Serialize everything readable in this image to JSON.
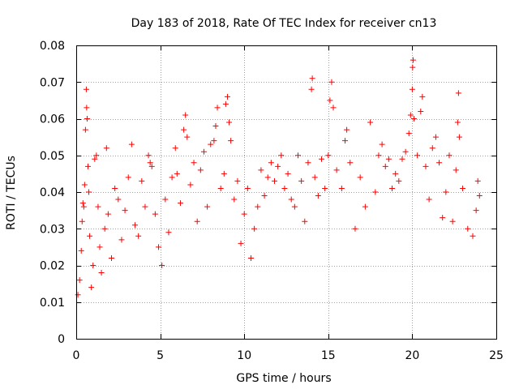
{
  "chart_data": {
    "type": "scatter",
    "title": "Day 183 of 2018, Rate Of TEC Index for receiver cn13",
    "xlabel": "GPS time / hours",
    "ylabel": "ROTI / TECUs",
    "xlim": [
      0,
      25
    ],
    "ylim": [
      0,
      0.08
    ],
    "x_ticks": [
      "0",
      "5",
      "10",
      "15",
      "20",
      "25"
    ],
    "y_ticks": [
      "0",
      "0.01",
      "0.02",
      "0.03",
      "0.04",
      "0.05",
      "0.06",
      "0.07",
      "0.08"
    ],
    "grid": true,
    "marker": "plus",
    "color": "#ff0000",
    "series": [
      {
        "points": [
          [
            0.1,
            0.012
          ],
          [
            0.2,
            0.016
          ],
          [
            0.3,
            0.024
          ],
          [
            0.35,
            0.032
          ],
          [
            0.4,
            0.037
          ],
          [
            0.45,
            0.036
          ],
          [
            0.5,
            0.042
          ],
          [
            0.55,
            0.057
          ],
          [
            0.6,
            0.068
          ],
          [
            0.62,
            0.063
          ],
          [
            0.65,
            0.06
          ],
          [
            0.7,
            0.047
          ],
          [
            0.75,
            0.04
          ],
          [
            0.8,
            0.028
          ],
          [
            0.9,
            0.014
          ],
          [
            1.0,
            0.02
          ],
          [
            1.1,
            0.049
          ],
          [
            1.2,
            0.05
          ],
          [
            1.3,
            0.036
          ],
          [
            1.4,
            0.025
          ],
          [
            1.5,
            0.018
          ],
          [
            1.7,
            0.03
          ],
          [
            1.8,
            0.052
          ],
          [
            1.9,
            0.034
          ],
          [
            2.1,
            0.022
          ],
          [
            2.3,
            0.041
          ],
          [
            2.5,
            0.038
          ],
          [
            2.7,
            0.027
          ],
          [
            2.9,
            0.035
          ],
          [
            3.1,
            0.044
          ],
          [
            3.3,
            0.053
          ],
          [
            3.5,
            0.031
          ],
          [
            3.7,
            0.028
          ],
          [
            3.9,
            0.043
          ],
          [
            4.1,
            0.036
          ],
          [
            4.3,
            0.05
          ],
          [
            4.4,
            0.048
          ],
          [
            4.5,
            0.047
          ],
          [
            4.7,
            0.034
          ],
          [
            4.9,
            0.025
          ],
          [
            5.1,
            0.02
          ],
          [
            5.3,
            0.038
          ],
          [
            5.5,
            0.029
          ],
          [
            5.7,
            0.044
          ],
          [
            5.9,
            0.052
          ],
          [
            6.0,
            0.045
          ],
          [
            6.2,
            0.037
          ],
          [
            6.4,
            0.057
          ],
          [
            6.5,
            0.061
          ],
          [
            6.6,
            0.055
          ],
          [
            6.8,
            0.042
          ],
          [
            7.0,
            0.048
          ],
          [
            7.2,
            0.032
          ],
          [
            7.4,
            0.046
          ],
          [
            7.6,
            0.051
          ],
          [
            7.8,
            0.036
          ],
          [
            8.0,
            0.053
          ],
          [
            8.2,
            0.054
          ],
          [
            8.3,
            0.058
          ],
          [
            8.4,
            0.063
          ],
          [
            8.6,
            0.041
          ],
          [
            8.8,
            0.045
          ],
          [
            8.9,
            0.064
          ],
          [
            9.0,
            0.066
          ],
          [
            9.1,
            0.059
          ],
          [
            9.2,
            0.054
          ],
          [
            9.4,
            0.038
          ],
          [
            9.6,
            0.043
          ],
          [
            9.8,
            0.026
          ],
          [
            10.0,
            0.034
          ],
          [
            10.2,
            0.041
          ],
          [
            10.4,
            0.022
          ],
          [
            10.6,
            0.03
          ],
          [
            10.8,
            0.036
          ],
          [
            11.0,
            0.046
          ],
          [
            11.2,
            0.039
          ],
          [
            11.4,
            0.044
          ],
          [
            11.6,
            0.048
          ],
          [
            11.8,
            0.043
          ],
          [
            12.0,
            0.047
          ],
          [
            12.2,
            0.05
          ],
          [
            12.4,
            0.041
          ],
          [
            12.6,
            0.045
          ],
          [
            12.8,
            0.038
          ],
          [
            13.0,
            0.036
          ],
          [
            13.2,
            0.05
          ],
          [
            13.4,
            0.043
          ],
          [
            13.6,
            0.032
          ],
          [
            13.8,
            0.048
          ],
          [
            14.0,
            0.068
          ],
          [
            14.05,
            0.071
          ],
          [
            14.2,
            0.044
          ],
          [
            14.4,
            0.039
          ],
          [
            14.6,
            0.049
          ],
          [
            14.8,
            0.041
          ],
          [
            15.0,
            0.05
          ],
          [
            15.1,
            0.065
          ],
          [
            15.2,
            0.07
          ],
          [
            15.3,
            0.063
          ],
          [
            15.5,
            0.046
          ],
          [
            15.8,
            0.041
          ],
          [
            16.0,
            0.054
          ],
          [
            16.1,
            0.057
          ],
          [
            16.3,
            0.048
          ],
          [
            16.6,
            0.03
          ],
          [
            16.9,
            0.044
          ],
          [
            17.2,
            0.036
          ],
          [
            17.5,
            0.059
          ],
          [
            17.8,
            0.04
          ],
          [
            18.0,
            0.05
          ],
          [
            18.2,
            0.053
          ],
          [
            18.4,
            0.047
          ],
          [
            18.6,
            0.049
          ],
          [
            18.8,
            0.041
          ],
          [
            19.0,
            0.045
          ],
          [
            19.2,
            0.043
          ],
          [
            19.4,
            0.049
          ],
          [
            19.6,
            0.051
          ],
          [
            19.8,
            0.056
          ],
          [
            19.9,
            0.061
          ],
          [
            20.0,
            0.068
          ],
          [
            20.02,
            0.074
          ],
          [
            20.05,
            0.076
          ],
          [
            20.1,
            0.06
          ],
          [
            20.3,
            0.05
          ],
          [
            20.5,
            0.062
          ],
          [
            20.6,
            0.066
          ],
          [
            20.8,
            0.047
          ],
          [
            21.0,
            0.038
          ],
          [
            21.2,
            0.052
          ],
          [
            21.4,
            0.055
          ],
          [
            21.6,
            0.048
          ],
          [
            21.8,
            0.033
          ],
          [
            22.0,
            0.04
          ],
          [
            22.2,
            0.05
          ],
          [
            22.4,
            0.032
          ],
          [
            22.6,
            0.046
          ],
          [
            22.7,
            0.059
          ],
          [
            22.75,
            0.067
          ],
          [
            22.8,
            0.055
          ],
          [
            23.0,
            0.041
          ],
          [
            23.3,
            0.03
          ],
          [
            23.6,
            0.028
          ],
          [
            23.8,
            0.035
          ],
          [
            23.9,
            0.043
          ],
          [
            24.0,
            0.039
          ]
        ]
      }
    ]
  }
}
